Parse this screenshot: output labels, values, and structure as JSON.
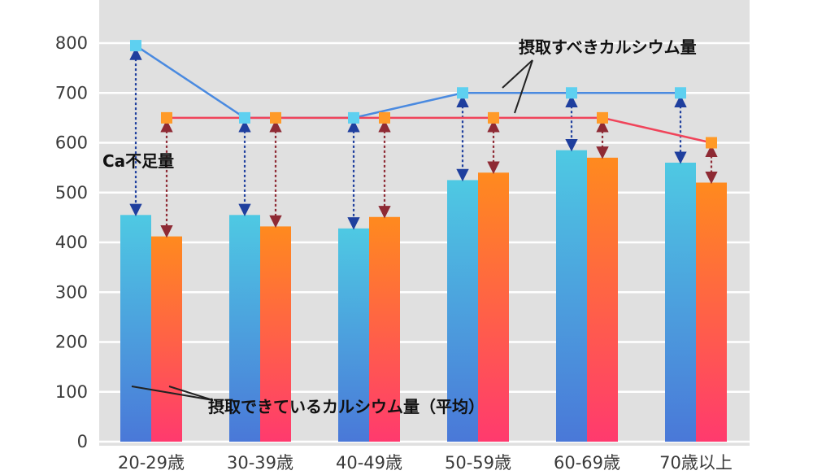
{
  "chart_data": {
    "type": "bar",
    "categories": [
      "20-29歳",
      "30-39歳",
      "40-49歳",
      "50-59歳",
      "60-69歳",
      "70歳以上"
    ],
    "ylim": [
      0,
      900
    ],
    "yticks": [
      0,
      100,
      200,
      300,
      400,
      500,
      600,
      700,
      800
    ],
    "grid": true,
    "series": [
      {
        "kind": "bar",
        "values": [
          455,
          455,
          428,
          525,
          585,
          560
        ],
        "color_top": "#4ec9e3",
        "color_bottom": "#4a78d8"
      },
      {
        "kind": "bar",
        "values": [
          412,
          432,
          451,
          540,
          570,
          520
        ],
        "color_top": "#ff8a1e",
        "color_bottom": "#ff3a6e"
      },
      {
        "kind": "line",
        "values": [
          795,
          650,
          650,
          700,
          700,
          700
        ],
        "color": "#4a8ae0",
        "marker_color": "#5ed0f0"
      },
      {
        "kind": "line",
        "values": [
          650,
          650,
          650,
          650,
          650,
          600
        ],
        "color": "#f0445a",
        "marker_color": "#ff9a28"
      }
    ],
    "annotations": {
      "recommended": "摂取すべきカルシウム量",
      "deficit": "Ca不足量",
      "actual": "摂取できているカルシウム量（平均）"
    }
  }
}
